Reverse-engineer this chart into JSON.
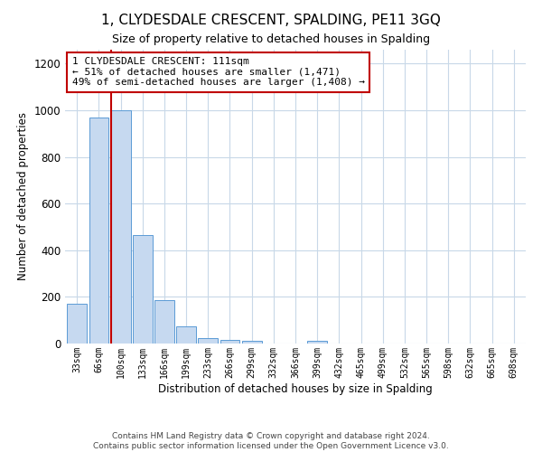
{
  "title": "1, CLYDESDALE CRESCENT, SPALDING, PE11 3GQ",
  "subtitle": "Size of property relative to detached houses in Spalding",
  "xlabel": "Distribution of detached houses by size in Spalding",
  "ylabel": "Number of detached properties",
  "bar_labels": [
    "33sqm",
    "66sqm",
    "100sqm",
    "133sqm",
    "166sqm",
    "199sqm",
    "233sqm",
    "266sqm",
    "299sqm",
    "332sqm",
    "366sqm",
    "399sqm",
    "432sqm",
    "465sqm",
    "499sqm",
    "532sqm",
    "565sqm",
    "598sqm",
    "632sqm",
    "665sqm",
    "698sqm"
  ],
  "bar_values": [
    170,
    970,
    1000,
    465,
    185,
    75,
    25,
    15,
    10,
    0,
    0,
    10,
    0,
    0,
    0,
    0,
    0,
    0,
    0,
    0,
    0
  ],
  "bar_color": "#c6d9f0",
  "bar_edge_color": "#5b9bd5",
  "marker_line_color": "#c00000",
  "ylim": [
    0,
    1260
  ],
  "yticks": [
    0,
    200,
    400,
    600,
    800,
    1000,
    1200
  ],
  "annotation_line1": "1 CLYDESDALE CRESCENT: 111sqm",
  "annotation_line2": "← 51% of detached houses are smaller (1,471)",
  "annotation_line3": "49% of semi-detached houses are larger (1,408) →",
  "annotation_box_color": "#ffffff",
  "annotation_box_edge": "#c00000",
  "footer_line1": "Contains HM Land Registry data © Crown copyright and database right 2024.",
  "footer_line2": "Contains public sector information licensed under the Open Government Licence v3.0.",
  "bg_color": "#ffffff",
  "grid_color": "#c8d8e8"
}
